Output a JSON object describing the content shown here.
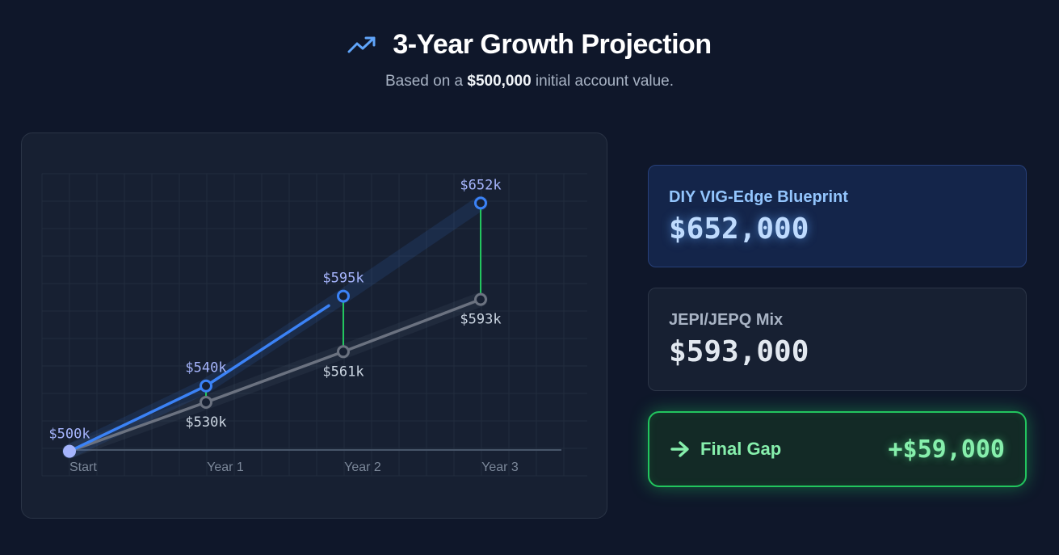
{
  "header": {
    "title": "3-Year Growth Projection",
    "subtitle_prefix": "Based on a ",
    "subtitle_amount": "$500,000",
    "subtitle_suffix": " initial account value.",
    "icon": "trending-up-icon"
  },
  "chart_data": {
    "type": "line",
    "categories": [
      "Start",
      "Year 1",
      "Year 2",
      "Year 3"
    ],
    "ylim": [
      480,
      670
    ],
    "grid": true,
    "series": [
      {
        "key": "diy",
        "values": [
          500,
          540,
          595,
          652
        ],
        "labels": [
          "$500k",
          "$540k",
          "$595k",
          "$652k"
        ],
        "color": "#3b82f6"
      },
      {
        "key": "jepi",
        "values": [
          500,
          530,
          561,
          593
        ],
        "labels": [
          "$500k",
          "$530k",
          "$561k",
          "$593k"
        ],
        "color": "#64748b"
      }
    ],
    "gap_connector_color": "#22c55e",
    "start_point_color": "#a5b4fc"
  },
  "cards": {
    "diy": {
      "label": "DIY VIG-Edge Blueprint",
      "value": "$652,000"
    },
    "jepi": {
      "label": "JEPI/JEPQ Mix",
      "value": "$593,000"
    },
    "gap": {
      "label": "Final Gap",
      "value": "+$59,000",
      "icon": "arrow-right-icon"
    }
  }
}
